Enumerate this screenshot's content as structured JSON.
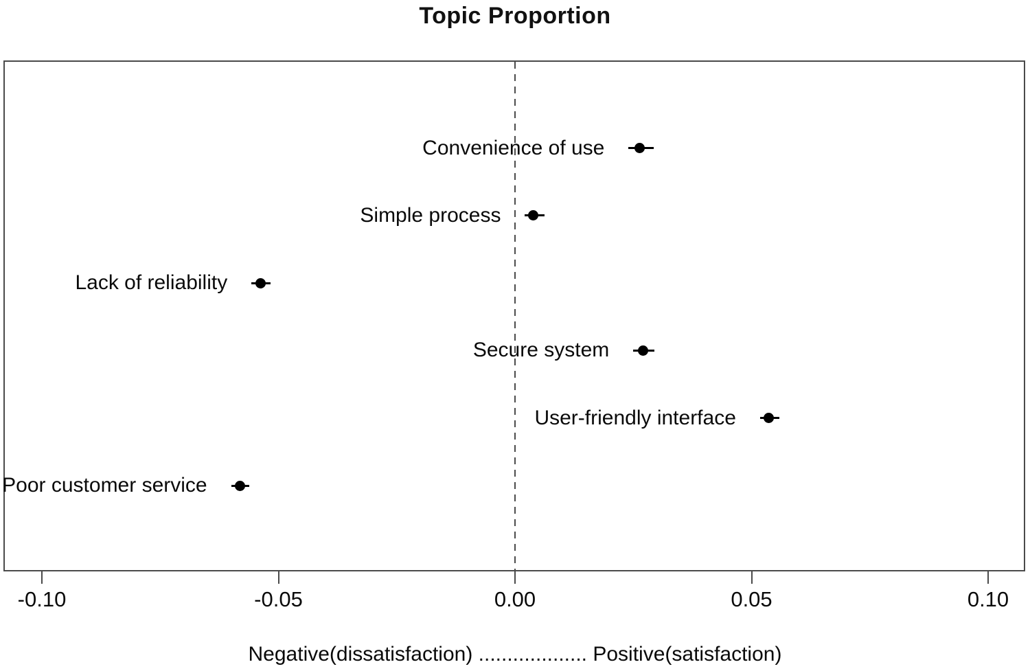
{
  "chart_data": {
    "type": "scatter",
    "title": "Topic Proportion",
    "xlabel": "Negative(dissatisfaction) ................... Positive(satisfaction)",
    "ylabel": "",
    "xlim": [
      -0.108,
      0.108
    ],
    "x_ticks": [
      -0.1,
      -0.05,
      0.0,
      0.05,
      0.1
    ],
    "x_tick_labels": [
      "-0.10",
      "-0.05",
      "0.00",
      "0.05",
      "0.10"
    ],
    "zero_reference_line": 0.0,
    "grid": false,
    "legend_position": "none",
    "point_color": "#000000",
    "line_color": "#000000",
    "topics": [
      {
        "label": "Convenience of use",
        "mean": 0.0264,
        "ci_low": 0.024,
        "ci_high": 0.0293
      },
      {
        "label": "Simple process",
        "mean": 0.0039,
        "ci_low": 0.0021,
        "ci_high": 0.0062
      },
      {
        "label": "Lack of reliability",
        "mean": -0.0538,
        "ci_low": -0.0557,
        "ci_high": -0.0516
      },
      {
        "label": "Secure system",
        "mean": 0.0271,
        "ci_low": 0.025,
        "ci_high": 0.0295
      },
      {
        "label": "User-friendly interface",
        "mean": 0.0537,
        "ci_low": 0.0518,
        "ci_high": 0.0559
      },
      {
        "label": "Poor customer service",
        "mean": -0.0581,
        "ci_low": -0.06,
        "ci_high": -0.0561
      }
    ]
  }
}
